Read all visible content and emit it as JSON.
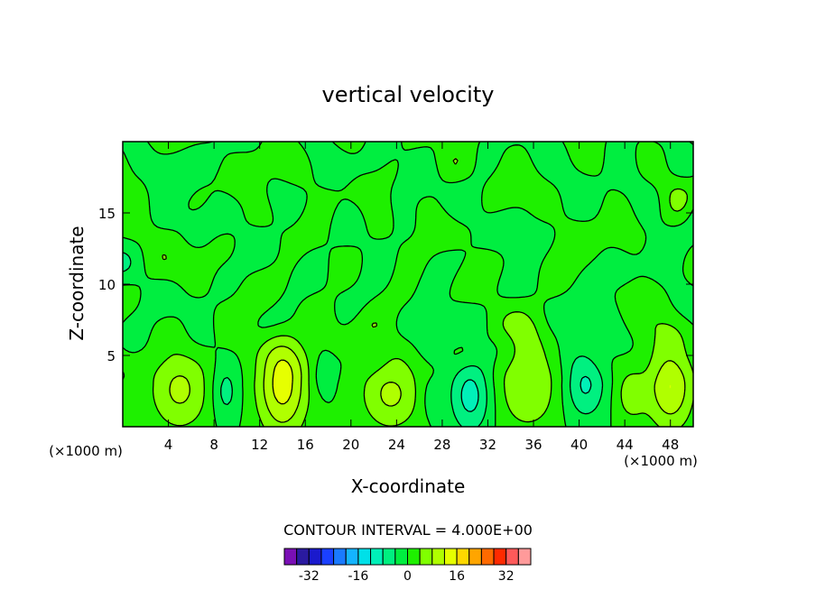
{
  "chart_data": {
    "type": "heatmap",
    "title": "vertical velocity",
    "xlabel": "X-coordinate",
    "ylabel": "Z-coordinate",
    "x_unit_left": "(×1000 m)",
    "x_unit_right": "(×1000 m)",
    "xlim": [
      0,
      50
    ],
    "ylim": [
      0,
      20
    ],
    "x_ticks": [
      4,
      8,
      12,
      16,
      20,
      24,
      28,
      32,
      36,
      40,
      44,
      48
    ],
    "y_ticks": [
      5,
      10,
      15
    ],
    "contour_interval_label": "CONTOUR INTERVAL = 4.000E+00",
    "colorbar": {
      "levels": [
        -40,
        -36,
        -32,
        -28,
        -24,
        -20,
        -16,
        -12,
        -8,
        -4,
        0,
        4,
        8,
        12,
        16,
        20,
        24,
        28,
        32,
        36,
        40
      ],
      "colors": [
        "#7a0fb5",
        "#2a1aa0",
        "#1a1acd",
        "#1a40ff",
        "#1a7aff",
        "#14b4ff",
        "#00e0e8",
        "#00f0b8",
        "#00f080",
        "#00ee40",
        "#1ef000",
        "#80ff00",
        "#b0ff00",
        "#e6ff00",
        "#ffd800",
        "#ffa500",
        "#ff6a00",
        "#ff2a00",
        "#ff5a5a",
        "#ff9a9a"
      ],
      "tick_labels": [
        "-32",
        "-16",
        "0",
        "16",
        "32"
      ],
      "tick_values": [
        -32,
        -16,
        0,
        16,
        32
      ]
    },
    "background_level_color": "#1ef000",
    "features": [
      {
        "x": 5,
        "z": 2.6,
        "rx": 2.6,
        "rz": 2.8,
        "w": 9
      },
      {
        "x": 9,
        "z": 2.5,
        "rx": 1.2,
        "rz": 2.0,
        "w": -6
      },
      {
        "x": 14,
        "z": 3.0,
        "rx": 2.2,
        "rz": 3.6,
        "w": 14
      },
      {
        "x": 17.5,
        "z": 3.5,
        "rx": 1.0,
        "rz": 1.5,
        "w": -3
      },
      {
        "x": 23.5,
        "z": 2.3,
        "rx": 2.6,
        "rz": 2.5,
        "w": 9
      },
      {
        "x": 27,
        "z": 2.0,
        "rx": 1.0,
        "rz": 1.5,
        "w": -3
      },
      {
        "x": 30.5,
        "z": 2.2,
        "rx": 1.8,
        "rz": 2.6,
        "w": -10
      },
      {
        "x": 35.5,
        "z": 3.0,
        "rx": 2.8,
        "rz": 3.2,
        "w": 8
      },
      {
        "x": 40.5,
        "z": 3.0,
        "rx": 1.8,
        "rz": 2.4,
        "w": -9
      },
      {
        "x": 44.5,
        "z": 2.3,
        "rx": 1.4,
        "rz": 2.0,
        "w": 6
      },
      {
        "x": 48,
        "z": 2.8,
        "rx": 2.0,
        "rz": 3.0,
        "w": 12
      }
    ]
  }
}
